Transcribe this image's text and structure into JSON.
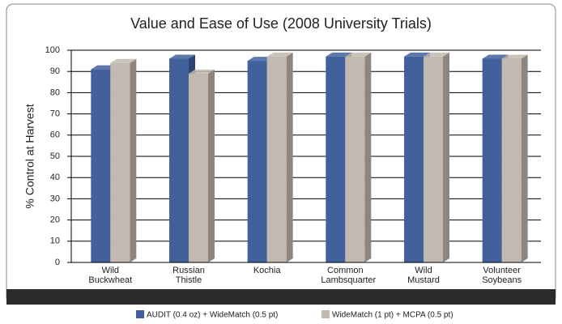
{
  "chart_data": {
    "type": "bar3d",
    "title": "Value and Ease of Use (2008 University Trials)",
    "ylabel": "% Control at Harvest",
    "categories": [
      "Wild Buckwheat",
      "Russian Thistle",
      "Kochia",
      "Common Lambsquarter",
      "Wild Mustard",
      "Volunteer Soybeans"
    ],
    "series": [
      {
        "name": "AUDIT (0.4 oz) + WideMatch (0.5 pt)",
        "color": "#41609c",
        "values": [
          91,
          96,
          95,
          97,
          97,
          96
        ]
      },
      {
        "name": "WideMatch (1 pt) + MCPA (0.5 pt)",
        "color": "#c2bab0",
        "values": [
          94,
          89,
          97,
          97,
          97,
          96
        ]
      }
    ],
    "ylim": [
      0,
      100
    ],
    "yticks": [
      0,
      10,
      20,
      30,
      40,
      50,
      60,
      70,
      80,
      90,
      100
    ],
    "grid": true,
    "legend": "bottom"
  }
}
